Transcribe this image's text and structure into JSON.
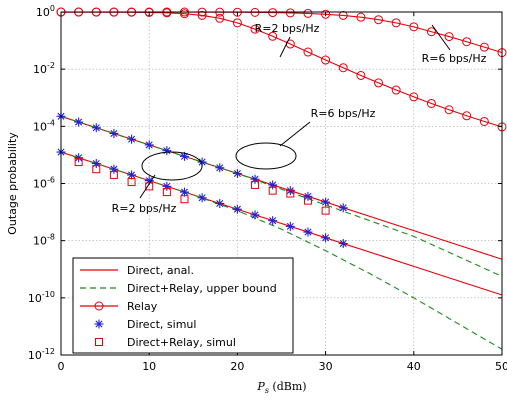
{
  "chart_data": {
    "type": "line",
    "xlabel_main": "P",
    "xlabel_sub": "s",
    "xlabel_unit": " (dBm)",
    "ylabel": "Outage probability",
    "xlim": [
      0,
      50
    ],
    "ylim_log10": [
      -12,
      0
    ],
    "y_scale": "log",
    "grid": true,
    "legend_position": "bottom-left",
    "x_ticks": [
      "0",
      "10",
      "20",
      "30",
      "40",
      "50"
    ],
    "y_ticks": [
      {
        "base": "10",
        "exp": "0"
      },
      {
        "base": "10",
        "exp": "-2"
      },
      {
        "base": "10",
        "exp": "-4"
      },
      {
        "base": "10",
        "exp": "-6"
      },
      {
        "base": "10",
        "exp": "-8"
      },
      {
        "base": "10",
        "exp": "-10"
      },
      {
        "base": "10",
        "exp": "-12"
      }
    ],
    "legend": [
      {
        "label": "Direct, anal.",
        "style": "solid",
        "marker": "none"
      },
      {
        "label": "Direct+Relay, upper bound",
        "style": "dashed",
        "marker": "none"
      },
      {
        "label": "Relay",
        "style": "solid",
        "marker": "circle"
      },
      {
        "label": "Direct, simul",
        "style": "none",
        "marker": "star"
      },
      {
        "label": "Direct+Relay, simul",
        "style": "none",
        "marker": "square"
      }
    ],
    "annotations": [
      {
        "text": "R=2 bps/Hz",
        "target": "relay-2"
      },
      {
        "text": "R=6 bps/Hz",
        "target": "relay-6"
      },
      {
        "text": "R=6 bps/Hz",
        "target": "direct-6"
      },
      {
        "text": "R=2 bps/Hz",
        "target": "direct-2"
      }
    ],
    "series": [
      {
        "id": "direct-anal-6",
        "legend_index": 0,
        "style": "solid",
        "color": "#e8000b",
        "x": [
          0,
          10,
          20,
          30,
          40,
          50
        ],
        "log10y": [
          -3.65,
          -4.65,
          -5.65,
          -6.65,
          -7.65,
          -8.65
        ]
      },
      {
        "id": "direct-anal-2",
        "legend_index": 0,
        "style": "solid",
        "color": "#e8000b",
        "x": [
          0,
          10,
          20,
          30,
          40,
          50
        ],
        "log10y": [
          -4.9,
          -5.9,
          -6.9,
          -7.9,
          -8.9,
          -9.9
        ]
      },
      {
        "id": "upper-bound-6",
        "legend_index": 1,
        "style": "dashed",
        "color": "#1e8a1e",
        "x": [
          0,
          10,
          20,
          25,
          30,
          35,
          40,
          45,
          50
        ],
        "log10y": [
          -3.65,
          -4.65,
          -5.65,
          -6.2,
          -6.75,
          -7.3,
          -7.85,
          -8.55,
          -9.25
        ]
      },
      {
        "id": "upper-bound-2",
        "legend_index": 1,
        "style": "dashed",
        "color": "#1e8a1e",
        "x": [
          0,
          10,
          15,
          20,
          25,
          30,
          35,
          40,
          45,
          50
        ],
        "log10y": [
          -4.9,
          -5.9,
          -6.4,
          -6.95,
          -7.6,
          -8.35,
          -9.15,
          -10.0,
          -10.9,
          -11.8
        ]
      },
      {
        "id": "relay-6",
        "legend_index": 2,
        "style": "solid",
        "color": "#e8000b",
        "x": [
          0,
          2,
          4,
          6,
          8,
          10,
          12,
          14,
          16,
          18,
          20,
          22,
          24,
          26,
          28,
          30,
          32,
          34,
          36,
          38,
          40,
          42,
          44,
          46,
          48,
          50
        ],
        "log10y": [
          -0.001,
          -0.001,
          -0.001,
          -0.001,
          -0.001,
          -0.001,
          -0.002,
          -0.002,
          -0.003,
          -0.005,
          -0.008,
          -0.013,
          -0.02,
          -0.032,
          -0.05,
          -0.08,
          -0.12,
          -0.18,
          -0.27,
          -0.38,
          -0.52,
          -0.69,
          -0.86,
          -1.04,
          -1.23,
          -1.42
        ]
      },
      {
        "id": "relay-2",
        "legend_index": 2,
        "style": "solid",
        "color": "#e8000b",
        "x": [
          0,
          2,
          4,
          6,
          8,
          10,
          12,
          14,
          16,
          18,
          20,
          22,
          24,
          26,
          28,
          30,
          32,
          34,
          36,
          38,
          40,
          42,
          44,
          46,
          48,
          50
        ],
        "log10y": [
          -0.001,
          -0.002,
          -0.003,
          -0.005,
          -0.008,
          -0.015,
          -0.03,
          -0.06,
          -0.12,
          -0.22,
          -0.38,
          -0.6,
          -0.85,
          -1.12,
          -1.4,
          -1.68,
          -1.95,
          -2.22,
          -2.48,
          -2.73,
          -2.97,
          -3.2,
          -3.42,
          -3.63,
          -3.83,
          -4.02
        ]
      },
      {
        "id": "direct-simul-6",
        "legend_index": 3,
        "style": "none",
        "color": "#1f22d6",
        "x": [
          0,
          2,
          4,
          6,
          8,
          10,
          12,
          14,
          16,
          18,
          20,
          22,
          24,
          26,
          28,
          30,
          32
        ],
        "log10y": [
          -3.65,
          -3.85,
          -4.05,
          -4.25,
          -4.45,
          -4.65,
          -4.85,
          -5.05,
          -5.25,
          -5.45,
          -5.65,
          -5.85,
          -6.05,
          -6.25,
          -6.45,
          -6.65,
          -6.85
        ]
      },
      {
        "id": "direct-simul-2",
        "legend_index": 3,
        "style": "none",
        "color": "#1f22d6",
        "x": [
          0,
          2,
          4,
          6,
          8,
          10,
          12,
          14,
          16,
          18,
          20,
          22,
          24,
          26,
          28,
          30,
          32
        ],
        "log10y": [
          -4.9,
          -5.1,
          -5.3,
          -5.5,
          -5.7,
          -5.9,
          -6.1,
          -6.3,
          -6.5,
          -6.7,
          -6.9,
          -7.1,
          -7.3,
          -7.5,
          -7.7,
          -7.9,
          -8.1
        ]
      },
      {
        "id": "dr-simul-6",
        "legend_index": 4,
        "style": "none",
        "color": "#e8000b",
        "x": [
          22,
          24,
          26,
          28,
          30
        ],
        "log10y": [
          -6.05,
          -6.25,
          -6.35,
          -6.6,
          -6.95
        ]
      },
      {
        "id": "dr-simul-2",
        "legend_index": 4,
        "style": "none",
        "color": "#e8000b",
        "x": [
          2,
          4,
          6,
          8,
          10,
          12,
          14
        ],
        "log10y": [
          -5.25,
          -5.5,
          -5.7,
          -5.95,
          -6.1,
          -6.3,
          -6.55
        ]
      }
    ]
  }
}
